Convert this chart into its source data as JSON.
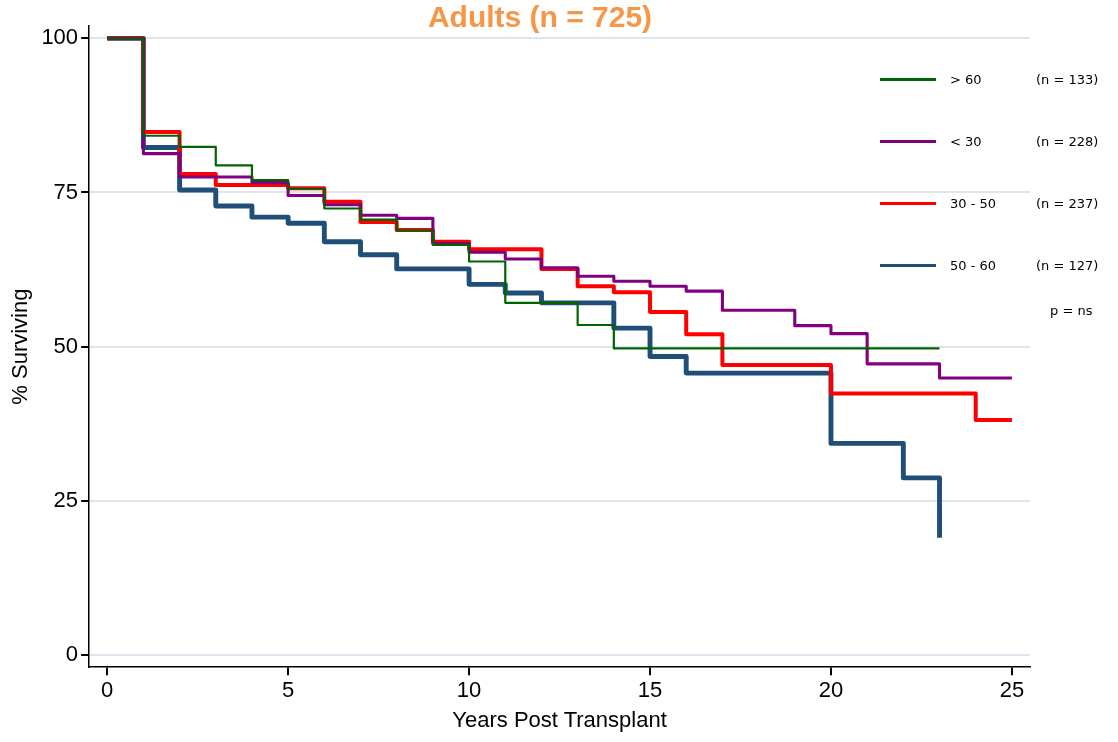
{
  "chart_data": {
    "type": "step",
    "title": "Adults (n = 725)",
    "xlabel": "Years Post Transplant",
    "ylabel": "% Surviving",
    "xlim": [
      -0.5,
      25.5
    ],
    "xticks": [
      0,
      5,
      10,
      15,
      20,
      25
    ],
    "ylim": [
      -2,
      102
    ],
    "yticks": [
      0,
      25,
      50,
      75,
      100
    ],
    "grid": "y",
    "legend": "top right",
    "line_style": "solid",
    "marker": "none",
    "series": [
      {
        "name": "> 60",
        "color": "#006400",
        "x": [
          0,
          1,
          2,
          3,
          4,
          5,
          6,
          7,
          8,
          9,
          10,
          11,
          13,
          14,
          23
        ],
        "values": [
          100,
          84.2,
          82.4,
          79.4,
          77.0,
          75.6,
          72.4,
          70.6,
          68.8,
          66.5,
          63.8,
          57.1,
          53.5,
          49.7,
          49.7
        ]
      },
      {
        "name": "< 30",
        "color": "#800080",
        "x": [
          0,
          1,
          2,
          4,
          5,
          6,
          7,
          8,
          9,
          10,
          11,
          12,
          13,
          14,
          15,
          16,
          17,
          19,
          20,
          21,
          23,
          25
        ],
        "values": [
          100,
          81.3,
          77.5,
          76.6,
          74.5,
          73.0,
          71.3,
          70.8,
          66.7,
          65.3,
          64.2,
          62.8,
          61.4,
          60.6,
          59.8,
          59.0,
          55.9,
          53.4,
          52.1,
          47.2,
          44.9,
          44.9
        ]
      },
      {
        "name": "30 - 50",
        "color": "#ff0000",
        "x": [
          0,
          1,
          2,
          3,
          5,
          6,
          7,
          8,
          9,
          10,
          12,
          13,
          14,
          15,
          16,
          17,
          20,
          24,
          25
        ],
        "values": [
          100,
          84.8,
          78.0,
          76.2,
          75.7,
          73.5,
          70.2,
          68.9,
          67.0,
          65.8,
          62.6,
          59.8,
          58.8,
          55.6,
          52.0,
          47.0,
          42.4,
          38.1,
          38.1
        ]
      },
      {
        "name": "50 - 60",
        "color": "#1f4e79",
        "x": [
          0,
          1,
          2,
          3,
          4,
          5,
          6,
          7,
          8,
          10,
          11,
          12,
          14,
          15,
          16,
          20,
          22,
          23
        ],
        "values": [
          100,
          82.3,
          75.4,
          72.8,
          71.0,
          70.0,
          67.0,
          64.9,
          62.6,
          60.1,
          58.7,
          57.1,
          53.0,
          48.4,
          45.7,
          34.3,
          28.7,
          19.0
        ]
      }
    ],
    "annotations": [
      "(n = 133)",
      "(n = 228)",
      "(n = 237)",
      "(n = 127)",
      "p  = ns"
    ]
  }
}
